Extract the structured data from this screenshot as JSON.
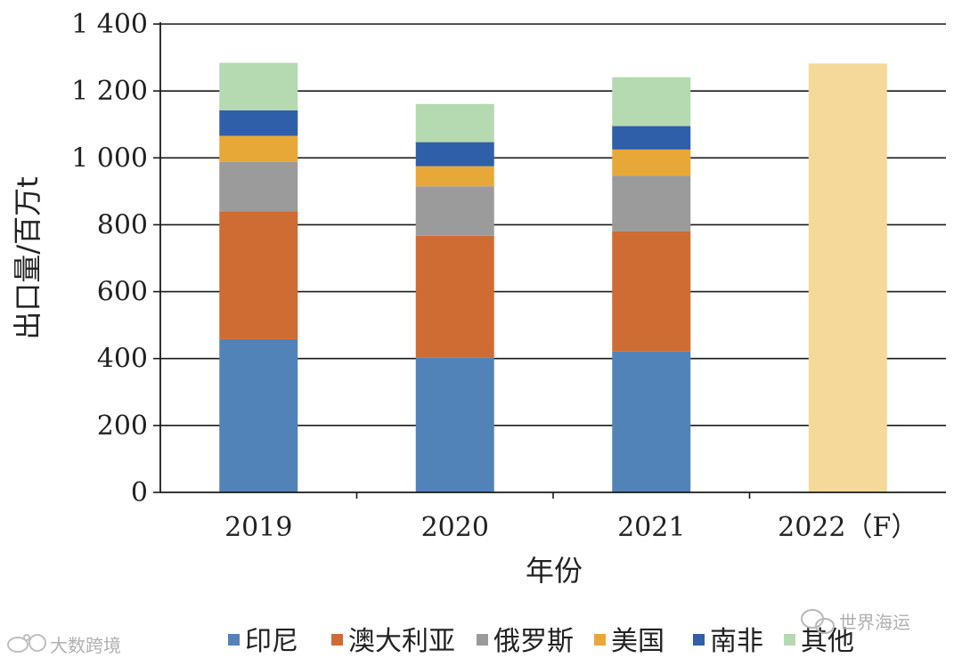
{
  "chart_data": {
    "type": "bar",
    "stacked": true,
    "categories": [
      "2019",
      "2020",
      "2021",
      "2022（F）"
    ],
    "series": [
      {
        "name": "印尼",
        "color": "#5283b8",
        "values": [
          458,
          404,
          421,
          null
        ]
      },
      {
        "name": "澳大利亚",
        "color": "#cf6c33",
        "values": [
          382,
          363,
          359,
          null
        ]
      },
      {
        "name": "俄罗斯",
        "color": "#9b9b9b",
        "values": [
          148,
          148,
          167,
          null
        ]
      },
      {
        "name": "美国",
        "color": "#e8a838",
        "values": [
          78,
          60,
          78,
          null
        ]
      },
      {
        "name": "南非",
        "color": "#2f5fa8",
        "values": [
          76,
          72,
          70,
          null
        ]
      },
      {
        "name": "其他",
        "color": "#b5d9b0",
        "values": [
          142,
          114,
          146,
          null
        ]
      }
    ],
    "forecast": {
      "category": "2022（F）",
      "value": 1282,
      "color": "#f5d99a"
    },
    "xlabel": "年份",
    "ylabel": "出口量/百万t",
    "ylim": [
      0,
      1400
    ],
    "yticks": [
      0,
      200,
      400,
      600,
      800,
      1000,
      1200,
      1400
    ],
    "ytick_labels": [
      "0",
      "200",
      "400",
      "600",
      "800",
      "1 000",
      "1 200",
      "1 400"
    ],
    "grid": true,
    "legend_position": "bottom"
  },
  "watermarks": {
    "left": "大数跨境",
    "right": "世界海运"
  }
}
